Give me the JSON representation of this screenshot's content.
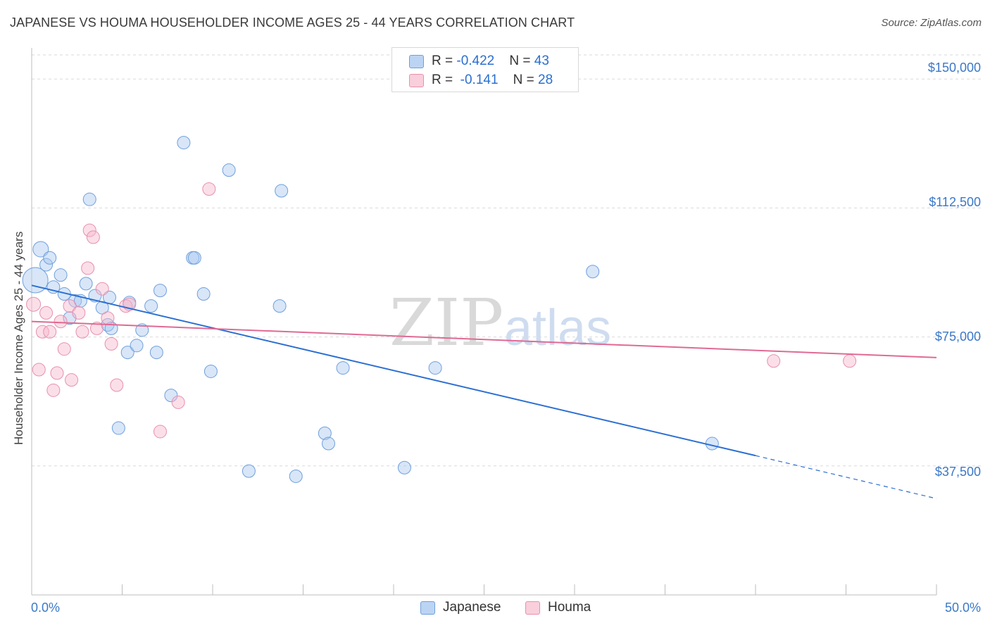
{
  "title": "JAPANESE VS HOUMA HOUSEHOLDER INCOME AGES 25 - 44 YEARS CORRELATION CHART",
  "source": "Source: ZipAtlas.com",
  "watermark": {
    "zip": "ZIP",
    "atlas": "atlas"
  },
  "colors": {
    "japanese_fill": "#a9c8ef",
    "japanese_stroke": "#6f9fdc",
    "japanese_line": "#2b6fd1",
    "houma_fill": "#f6b9cd",
    "houma_stroke": "#e890ae",
    "houma_line": "#e06a94",
    "grid": "#d9d9d9",
    "tick_label": "#3b78c9"
  },
  "legend": {
    "rows": [
      {
        "r_label": "R = ",
        "r_value": "-0.422",
        "n_label": "N = ",
        "n_value": "43"
      },
      {
        "r_label": "R = ",
        "r_value": " -0.141",
        "n_label": "N = ",
        "n_value": "28"
      }
    ]
  },
  "chart_data": {
    "type": "scatter",
    "title": "JAPANESE VS HOUMA HOUSEHOLDER INCOME AGES 25 - 44 YEARS CORRELATION CHART",
    "xlabel": "",
    "ylabel": "Householder Income Ages 25 - 44 years",
    "xlim": [
      0,
      50
    ],
    "ylim": [
      0,
      157000
    ],
    "x_tick_labels": [
      "0.0%",
      "50.0%"
    ],
    "y_ticks": [
      37500,
      75000,
      112500,
      150000
    ],
    "y_tick_labels": [
      "$37,500",
      "$75,000",
      "$112,500",
      "$150,000"
    ],
    "grid": true,
    "legend_position": "top-center",
    "series": [
      {
        "name": "Japanese",
        "R": -0.422,
        "N": 43,
        "trend": {
          "x": [
            0,
            40,
            50
          ],
          "y": [
            90000,
            40500,
            28000
          ],
          "solid_until_x": 40
        },
        "points": [
          {
            "x": 0.2,
            "y": 91500,
            "s": 18
          },
          {
            "x": 0.5,
            "y": 100500,
            "s": 11
          },
          {
            "x": 0.8,
            "y": 96000,
            "s": 9
          },
          {
            "x": 1.0,
            "y": 98000,
            "s": 9
          },
          {
            "x": 1.6,
            "y": 93000,
            "s": 9
          },
          {
            "x": 1.2,
            "y": 89500,
            "s": 9
          },
          {
            "x": 1.8,
            "y": 87500,
            "s": 9
          },
          {
            "x": 2.1,
            "y": 80500,
            "s": 9
          },
          {
            "x": 2.4,
            "y": 85500,
            "s": 9
          },
          {
            "x": 2.7,
            "y": 85500,
            "s": 9
          },
          {
            "x": 3.0,
            "y": 90500,
            "s": 9
          },
          {
            "x": 3.2,
            "y": 115000,
            "s": 9
          },
          {
            "x": 3.5,
            "y": 87000,
            "s": 9
          },
          {
            "x": 3.9,
            "y": 83500,
            "s": 9
          },
          {
            "x": 4.3,
            "y": 86500,
            "s": 9
          },
          {
            "x": 4.2,
            "y": 78500,
            "s": 9
          },
          {
            "x": 4.4,
            "y": 77500,
            "s": 9
          },
          {
            "x": 4.8,
            "y": 48500,
            "s": 9
          },
          {
            "x": 5.3,
            "y": 70500,
            "s": 9
          },
          {
            "x": 5.4,
            "y": 85000,
            "s": 9
          },
          {
            "x": 5.8,
            "y": 72500,
            "s": 9
          },
          {
            "x": 6.1,
            "y": 77000,
            "s": 9
          },
          {
            "x": 6.6,
            "y": 84000,
            "s": 9
          },
          {
            "x": 6.9,
            "y": 70500,
            "s": 9
          },
          {
            "x": 7.1,
            "y": 88500,
            "s": 9
          },
          {
            "x": 7.7,
            "y": 58000,
            "s": 9
          },
          {
            "x": 8.4,
            "y": 131500,
            "s": 9
          },
          {
            "x": 8.9,
            "y": 98000,
            "s": 9
          },
          {
            "x": 9.0,
            "y": 98000,
            "s": 9
          },
          {
            "x": 9.5,
            "y": 87500,
            "s": 9
          },
          {
            "x": 9.9,
            "y": 65000,
            "s": 9
          },
          {
            "x": 10.9,
            "y": 123500,
            "s": 9
          },
          {
            "x": 12.0,
            "y": 36000,
            "s": 9
          },
          {
            "x": 13.7,
            "y": 84000,
            "s": 9
          },
          {
            "x": 13.8,
            "y": 117500,
            "s": 9
          },
          {
            "x": 14.6,
            "y": 34500,
            "s": 9
          },
          {
            "x": 16.2,
            "y": 47000,
            "s": 9
          },
          {
            "x": 16.4,
            "y": 44000,
            "s": 9
          },
          {
            "x": 17.2,
            "y": 66000,
            "s": 9
          },
          {
            "x": 20.6,
            "y": 37000,
            "s": 9
          },
          {
            "x": 22.3,
            "y": 66000,
            "s": 9
          },
          {
            "x": 31.0,
            "y": 94000,
            "s": 9
          },
          {
            "x": 37.6,
            "y": 44000,
            "s": 9
          }
        ]
      },
      {
        "name": "Houma",
        "R": -0.141,
        "N": 28,
        "trend": {
          "x": [
            0,
            50
          ],
          "y": [
            79500,
            69000
          ]
        },
        "points": [
          {
            "x": 0.1,
            "y": 84500,
            "s": 10
          },
          {
            "x": 0.4,
            "y": 65500,
            "s": 9
          },
          {
            "x": 0.6,
            "y": 76500,
            "s": 9
          },
          {
            "x": 0.8,
            "y": 82000,
            "s": 9
          },
          {
            "x": 1.0,
            "y": 76500,
            "s": 9
          },
          {
            "x": 1.2,
            "y": 59500,
            "s": 9
          },
          {
            "x": 1.4,
            "y": 64500,
            "s": 9
          },
          {
            "x": 1.6,
            "y": 79500,
            "s": 9
          },
          {
            "x": 1.8,
            "y": 71500,
            "s": 9
          },
          {
            "x": 2.1,
            "y": 84000,
            "s": 9
          },
          {
            "x": 2.2,
            "y": 62500,
            "s": 9
          },
          {
            "x": 2.6,
            "y": 82000,
            "s": 9
          },
          {
            "x": 2.8,
            "y": 76500,
            "s": 9
          },
          {
            "x": 3.1,
            "y": 95000,
            "s": 9
          },
          {
            "x": 3.2,
            "y": 106000,
            "s": 9
          },
          {
            "x": 3.4,
            "y": 104000,
            "s": 9
          },
          {
            "x": 3.6,
            "y": 77500,
            "s": 9
          },
          {
            "x": 3.9,
            "y": 89000,
            "s": 9
          },
          {
            "x": 4.2,
            "y": 80500,
            "s": 9
          },
          {
            "x": 4.4,
            "y": 73000,
            "s": 9
          },
          {
            "x": 4.7,
            "y": 61000,
            "s": 9
          },
          {
            "x": 5.2,
            "y": 84000,
            "s": 9
          },
          {
            "x": 5.4,
            "y": 84500,
            "s": 9
          },
          {
            "x": 7.1,
            "y": 47500,
            "s": 9
          },
          {
            "x": 8.1,
            "y": 56000,
            "s": 9
          },
          {
            "x": 9.8,
            "y": 118000,
            "s": 9
          },
          {
            "x": 41.0,
            "y": 68000,
            "s": 9
          },
          {
            "x": 45.2,
            "y": 68000,
            "s": 9
          }
        ]
      }
    ]
  }
}
